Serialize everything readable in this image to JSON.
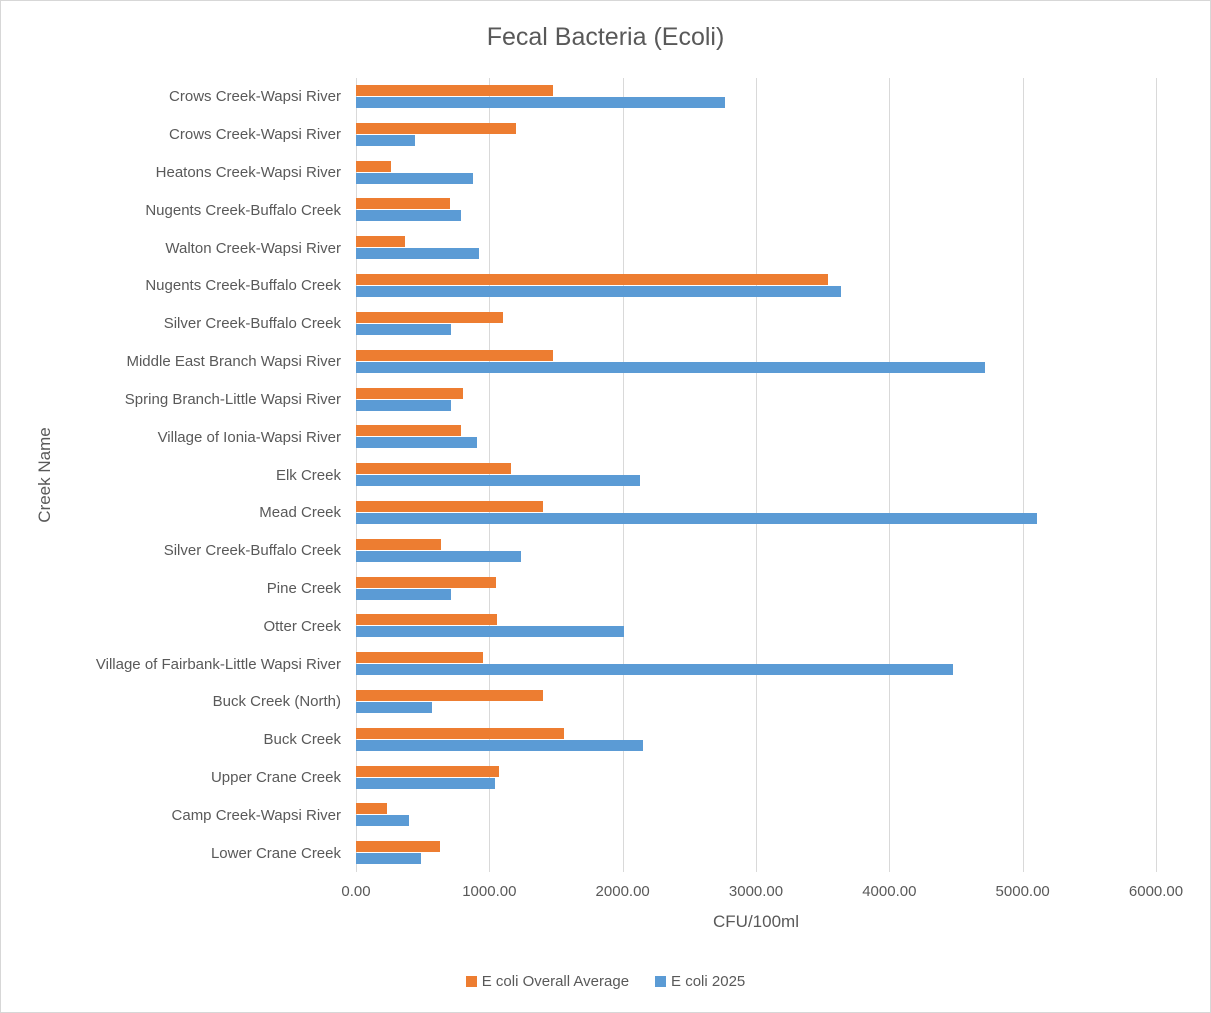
{
  "chart_data": {
    "type": "bar",
    "orientation": "horizontal",
    "title": "Fecal Bacteria (Ecoli)",
    "xlabel": "CFU/100ml",
    "ylabel": "Creek Name",
    "xlim": [
      0,
      6000
    ],
    "x_ticks": [
      0,
      1000,
      2000,
      3000,
      4000,
      5000,
      6000
    ],
    "x_tick_labels": [
      "0.00",
      "1000.00",
      "2000.00",
      "3000.00",
      "4000.00",
      "5000.00",
      "6000.00"
    ],
    "grid": true,
    "legend_position": "bottom",
    "categories": [
      "Crows Creek-Wapsi River",
      "Crows Creek-Wapsi River",
      "Heatons Creek-Wapsi River",
      "Nugents Creek-Buffalo Creek",
      "Walton Creek-Wapsi River",
      "Nugents Creek-Buffalo Creek",
      "Silver Creek-Buffalo Creek",
      "Middle East Branch Wapsi River",
      "Spring Branch-Little Wapsi River",
      "Village of Ionia-Wapsi River",
      "Elk Creek",
      "Mead Creek",
      "Silver Creek-Buffalo Creek",
      "Pine Creek",
      "Otter Creek",
      "Village of Fairbank-Little Wapsi River",
      "Buck Creek (North)",
      "Buck Creek",
      "Upper Crane Creek",
      "Camp Creek-Wapsi River",
      "Lower Crane Creek"
    ],
    "series": [
      {
        "name": "E coli Overall Average",
        "color": "#ED7D31",
        "values": [
          1480,
          1200,
          260,
          705,
          370,
          3540,
          1105,
          1480,
          805,
          790,
          1160,
          1400,
          640,
          1050,
          1060,
          950,
          1400,
          1560,
          1070,
          230,
          630
        ]
      },
      {
        "name": "E coli 2025",
        "color": "#5B9BD5",
        "values": [
          2770,
          440,
          880,
          785,
          925,
          3640,
          710,
          4720,
          710,
          910,
          2130,
          5110,
          1240,
          710,
          2010,
          4480,
          570,
          2150,
          1045,
          395,
          490
        ]
      }
    ]
  }
}
